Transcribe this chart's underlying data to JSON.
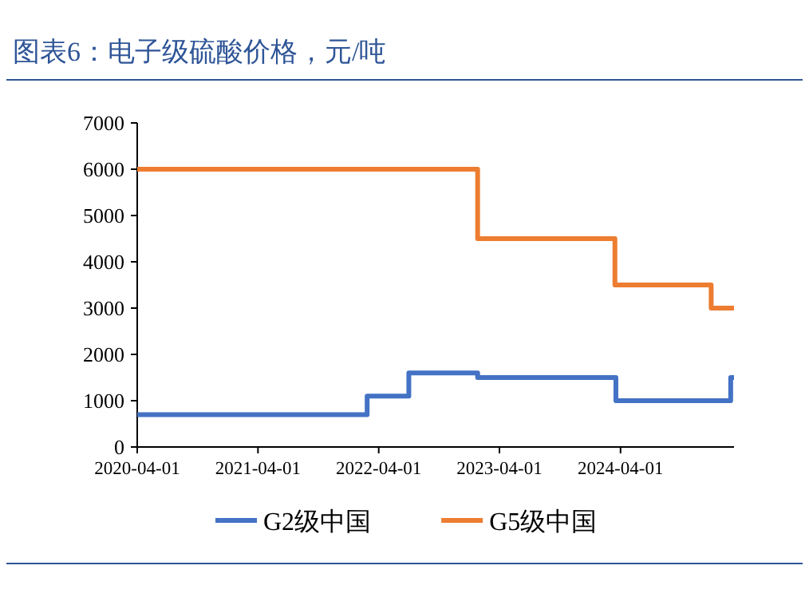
{
  "chart_data": {
    "type": "step",
    "title": "图表6：电子级硫酸价格，元/吨",
    "xlim": [
      "2020-04-01",
      "2025-03-10"
    ],
    "xticks": [
      "2020-04-01",
      "2021-04-01",
      "2022-04-01",
      "2023-04-01",
      "2024-04-01"
    ],
    "ylim": [
      0,
      7000
    ],
    "yticks": [
      0,
      1000,
      2000,
      3000,
      4000,
      5000,
      6000,
      7000
    ],
    "grid": false,
    "legend": "bottom",
    "line_style": "solid",
    "marker": "none",
    "series": [
      {
        "name": "G2级中国",
        "color": "#4472c4",
        "x": [
          "2020-04-01",
          "2022-02-25",
          "2022-07-01",
          "2023-01-25",
          "2024-03-18",
          "2025-02-28",
          "2025-03-10"
        ],
        "values": [
          700,
          1100,
          1600,
          1500,
          1000,
          1500,
          1500
        ]
      },
      {
        "name": "G5级中国",
        "color": "#ed7d31",
        "x": [
          "2020-04-01",
          "2023-01-25",
          "2024-03-15",
          "2024-12-31",
          "2025-03-10"
        ],
        "values": [
          6000,
          4500,
          3500,
          3000,
          3000
        ]
      }
    ]
  }
}
